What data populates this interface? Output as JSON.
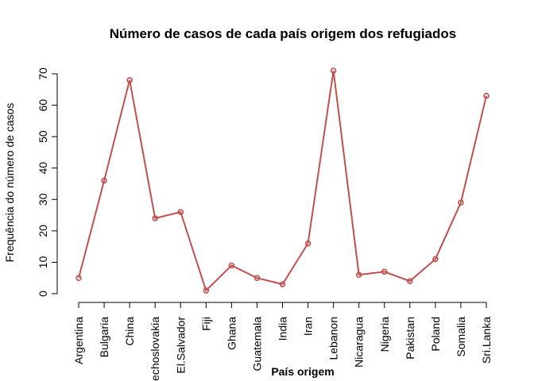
{
  "chart_data": {
    "type": "line",
    "title": "Número de casos de cada país origem dos refugiados",
    "xlabel": "País origem",
    "ylabel": "Frequência do número de casos",
    "ylim": [
      0,
      70
    ],
    "yticks": [
      0,
      10,
      20,
      30,
      40,
      50,
      60,
      70
    ],
    "categories": [
      "Argentina",
      "Bulgaria",
      "China",
      "Czechoslovakia",
      "El.Salvador",
      "Fiji",
      "Ghana",
      "Guatemala",
      "India",
      "Iran",
      "Lebanon",
      "Nicaragua",
      "Nigeria",
      "Pakistan",
      "Poland",
      "Somalia",
      "Sri.Lanka"
    ],
    "values": [
      5,
      36,
      68,
      24,
      26,
      1,
      9,
      5,
      3,
      16,
      71,
      6,
      7,
      4,
      11,
      29,
      63
    ],
    "line_color": "#c0504d",
    "marker": "open-circle",
    "grid": false,
    "legend": "none"
  }
}
